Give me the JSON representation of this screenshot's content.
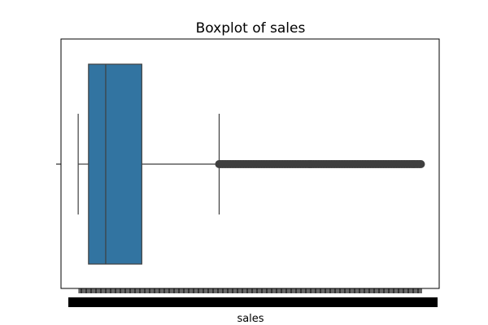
{
  "chart_data": {
    "type": "boxplot",
    "title": "Boxplot of sales",
    "xlabel": "sales",
    "ylabel": "",
    "orientation": "horizontal",
    "xlim": [
      -0.05,
      1.05
    ],
    "box": {
      "whisker_low": 0.0,
      "q1": 0.03,
      "median": 0.08,
      "q3": 0.185,
      "whisker_high": 0.41,
      "outliers_from": 0.41,
      "outliers_to": 1.0
    },
    "colors": {
      "box_fill": "#3274a1",
      "line": "#3f3f3f",
      "outlier": "#3f3f3f"
    },
    "grid": false,
    "legend": "none",
    "x_tick_labels_overlapping": true
  }
}
